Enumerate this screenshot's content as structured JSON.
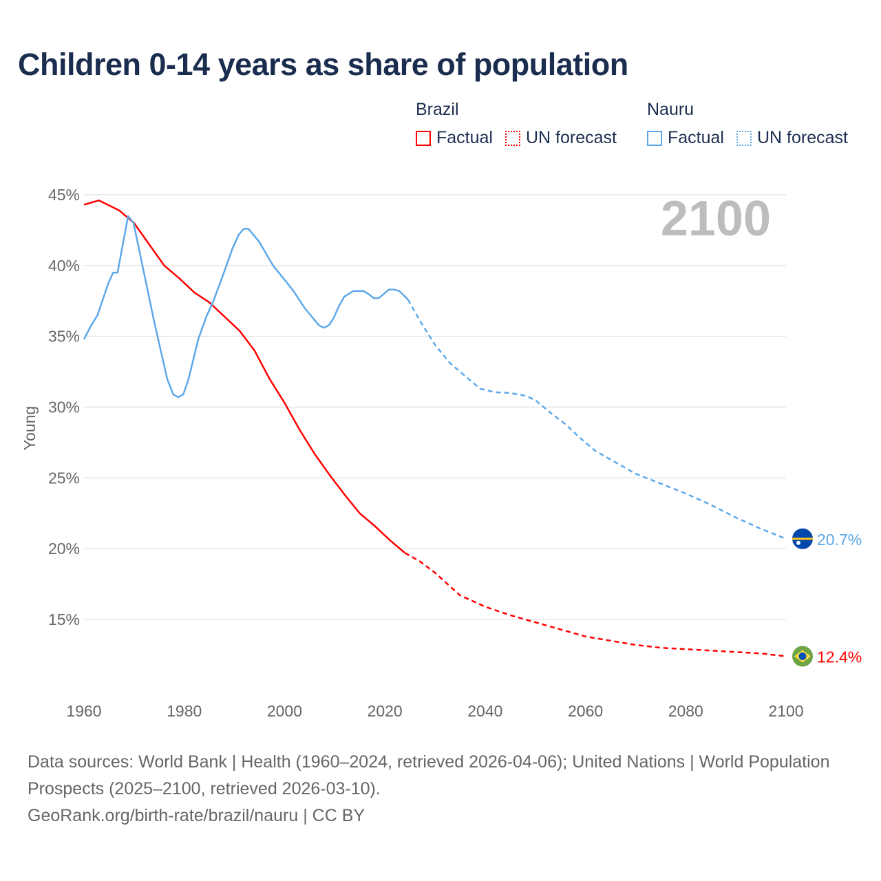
{
  "title": "Children 0-14 years as share of population",
  "legend": {
    "groups": [
      {
        "name": "Brazil",
        "color": "#ff0000",
        "factual": "Factual",
        "forecast": "UN forecast"
      },
      {
        "name": "Nauru",
        "color": "#5ca8ea",
        "factual": "Factual",
        "forecast": "UN forecast"
      }
    ]
  },
  "year_label": "2100",
  "chart_data": {
    "type": "line",
    "title": "Children 0-14 years as share of population",
    "ylabel": "Young",
    "xlabel": "",
    "xlim": [
      1960,
      2100
    ],
    "ylim": [
      10,
      45
    ],
    "x_ticks": [
      1960,
      1980,
      2000,
      2020,
      2040,
      2060,
      2080,
      2100
    ],
    "x_tick_labels": [
      "1960",
      "1980",
      "2000",
      "2020",
      "2040",
      "2060",
      "2080",
      "2100"
    ],
    "y_ticks": [
      15,
      20,
      25,
      30,
      35,
      40,
      45
    ],
    "y_tick_labels": [
      "15%",
      "20%",
      "25%",
      "30%",
      "35%",
      "40%",
      "45%"
    ],
    "grid": true,
    "legend_position": "top-right",
    "series": [
      {
        "name": "Brazil",
        "color": "#ff0000",
        "end_label": "12.4%",
        "flag": "brazil-flag",
        "factual": [
          [
            1960,
            44.3
          ],
          [
            1963,
            44.6
          ],
          [
            1967,
            43.9
          ],
          [
            1970,
            43.0
          ],
          [
            1973,
            41.5
          ],
          [
            1976,
            40.0
          ],
          [
            1979,
            39.1
          ],
          [
            1982,
            38.1
          ],
          [
            1985,
            37.4
          ],
          [
            1988,
            36.4
          ],
          [
            1991,
            35.4
          ],
          [
            1994,
            34.0
          ],
          [
            1997,
            32.0
          ],
          [
            2000,
            30.3
          ],
          [
            2003,
            28.4
          ],
          [
            2006,
            26.7
          ],
          [
            2009,
            25.2
          ],
          [
            2012,
            23.8
          ],
          [
            2015,
            22.5
          ],
          [
            2018,
            21.6
          ],
          [
            2021,
            20.6
          ],
          [
            2024,
            19.7
          ]
        ],
        "forecast": [
          [
            2024,
            19.7
          ],
          [
            2027,
            19.1
          ],
          [
            2030,
            18.3
          ],
          [
            2035,
            16.7
          ],
          [
            2040,
            15.9
          ],
          [
            2045,
            15.3
          ],
          [
            2050,
            14.8
          ],
          [
            2055,
            14.3
          ],
          [
            2060,
            13.8
          ],
          [
            2065,
            13.5
          ],
          [
            2070,
            13.2
          ],
          [
            2075,
            13.0
          ],
          [
            2080,
            12.9
          ],
          [
            2085,
            12.8
          ],
          [
            2090,
            12.7
          ],
          [
            2095,
            12.6
          ],
          [
            2100,
            12.4
          ]
        ]
      },
      {
        "name": "Nauru",
        "color": "#5ca8ea",
        "end_label": "20.7%",
        "flag": "nauru-flag",
        "factual": [
          [
            1960,
            34.8
          ],
          [
            1961.5,
            35.8
          ],
          [
            1962.7,
            36.5
          ],
          [
            1964.8,
            38.7
          ],
          [
            1965.8,
            39.5
          ],
          [
            1966.7,
            39.5
          ],
          [
            1968.8,
            43.5
          ],
          [
            1969.9,
            43.0
          ],
          [
            1973.9,
            36.2
          ],
          [
            1976.6,
            32.0
          ],
          [
            1977.8,
            30.9
          ],
          [
            1978.8,
            30.7
          ],
          [
            1979.8,
            30.9
          ],
          [
            1980.8,
            31.9
          ],
          [
            1982.8,
            34.8
          ],
          [
            1984.4,
            36.4
          ],
          [
            1985.8,
            37.5
          ],
          [
            1987.6,
            39.2
          ],
          [
            1989.6,
            41.2
          ],
          [
            1990.9,
            42.2
          ],
          [
            1991.9,
            42.6
          ],
          [
            1992.8,
            42.6
          ],
          [
            1994.9,
            41.7
          ],
          [
            1997.7,
            40.0
          ],
          [
            2000,
            39.0
          ],
          [
            2001.8,
            38.2
          ],
          [
            2004,
            37.0
          ],
          [
            2006.8,
            35.8
          ],
          [
            2007.8,
            35.6
          ],
          [
            2008.9,
            35.8
          ],
          [
            2009.8,
            36.3
          ],
          [
            2010.8,
            37.1
          ],
          [
            2011.9,
            37.8
          ],
          [
            2013.7,
            38.2
          ],
          [
            2015.8,
            38.2
          ],
          [
            2016.7,
            38.0
          ],
          [
            2017.8,
            37.7
          ],
          [
            2018.8,
            37.7
          ],
          [
            2020.8,
            38.3
          ],
          [
            2021.9,
            38.3
          ],
          [
            2022.9,
            38.2
          ],
          [
            2024.6,
            37.6
          ]
        ],
        "forecast": [
          [
            2024.6,
            37.6
          ],
          [
            2027,
            36.1
          ],
          [
            2030,
            34.4
          ],
          [
            2033,
            33.1
          ],
          [
            2035,
            32.5
          ],
          [
            2037,
            31.9
          ],
          [
            2039,
            31.3
          ],
          [
            2042,
            31.05
          ],
          [
            2045,
            31.0
          ],
          [
            2048,
            30.8
          ],
          [
            2050,
            30.5
          ],
          [
            2053,
            29.6
          ],
          [
            2056,
            28.8
          ],
          [
            2059,
            27.8
          ],
          [
            2062,
            26.9
          ],
          [
            2065,
            26.3
          ],
          [
            2070,
            25.3
          ],
          [
            2075,
            24.6
          ],
          [
            2080,
            23.9
          ],
          [
            2085,
            23.1
          ],
          [
            2090,
            22.2
          ],
          [
            2095,
            21.4
          ],
          [
            2100,
            20.7
          ]
        ]
      }
    ]
  },
  "footer": {
    "sources": "Data sources: World Bank | Health (1960–2024, retrieved 2026-04-06); United Nations | World Population Prospects (2025–2100, retrieved 2026-03-10).",
    "credit": "GeoRank.org/birth-rate/brazil/nauru | CC BY"
  }
}
